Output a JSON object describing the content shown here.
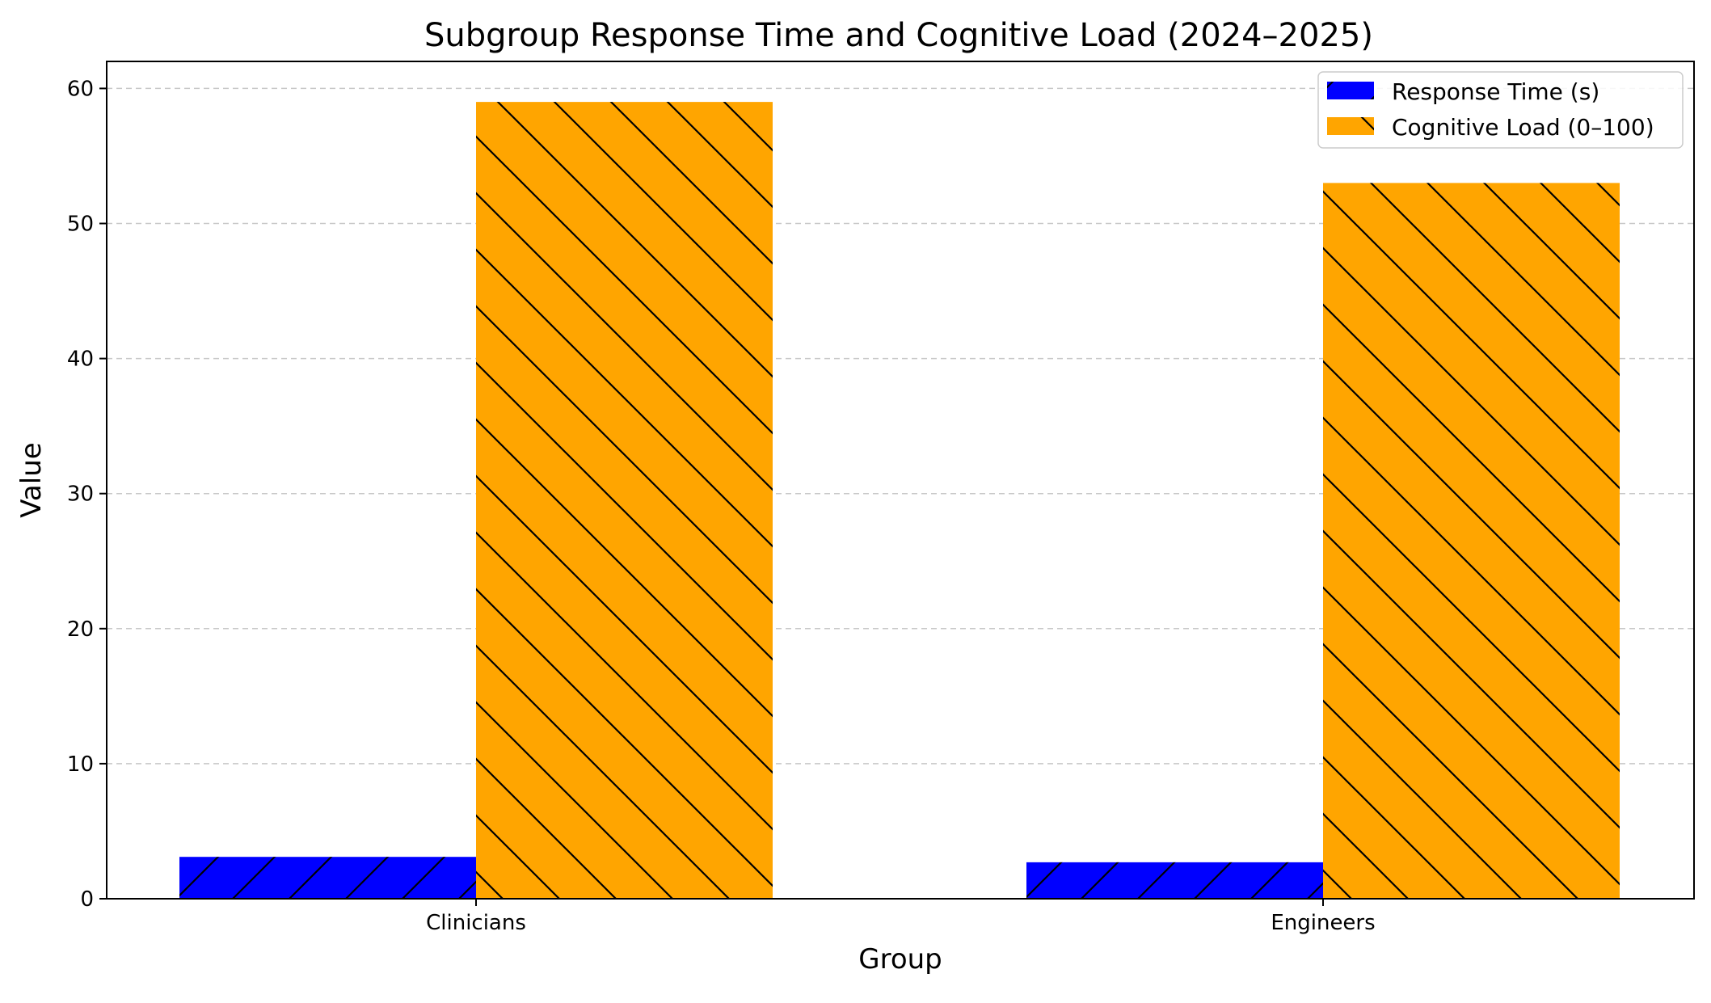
{
  "chart_data": {
    "type": "bar",
    "title": "Subgroup Response Time and Cognitive Load (2024–2025)",
    "xlabel": "Group",
    "ylabel": "Value",
    "categories": [
      "Clinicians",
      "Engineers"
    ],
    "series": [
      {
        "name": "Response Time (s)",
        "values": [
          3.1,
          2.7
        ],
        "color": "#0000ff",
        "hatch": "forward-slash"
      },
      {
        "name": "Cognitive Load (0–100)",
        "values": [
          59.0,
          53.0
        ],
        "color": "#ffa500",
        "hatch": "back-slash"
      }
    ],
    "ylim": [
      0,
      62
    ],
    "yticks": [
      0,
      10,
      20,
      30,
      40,
      50,
      60
    ],
    "grid": "horizontal-dashed",
    "legend_position": "top-right"
  }
}
